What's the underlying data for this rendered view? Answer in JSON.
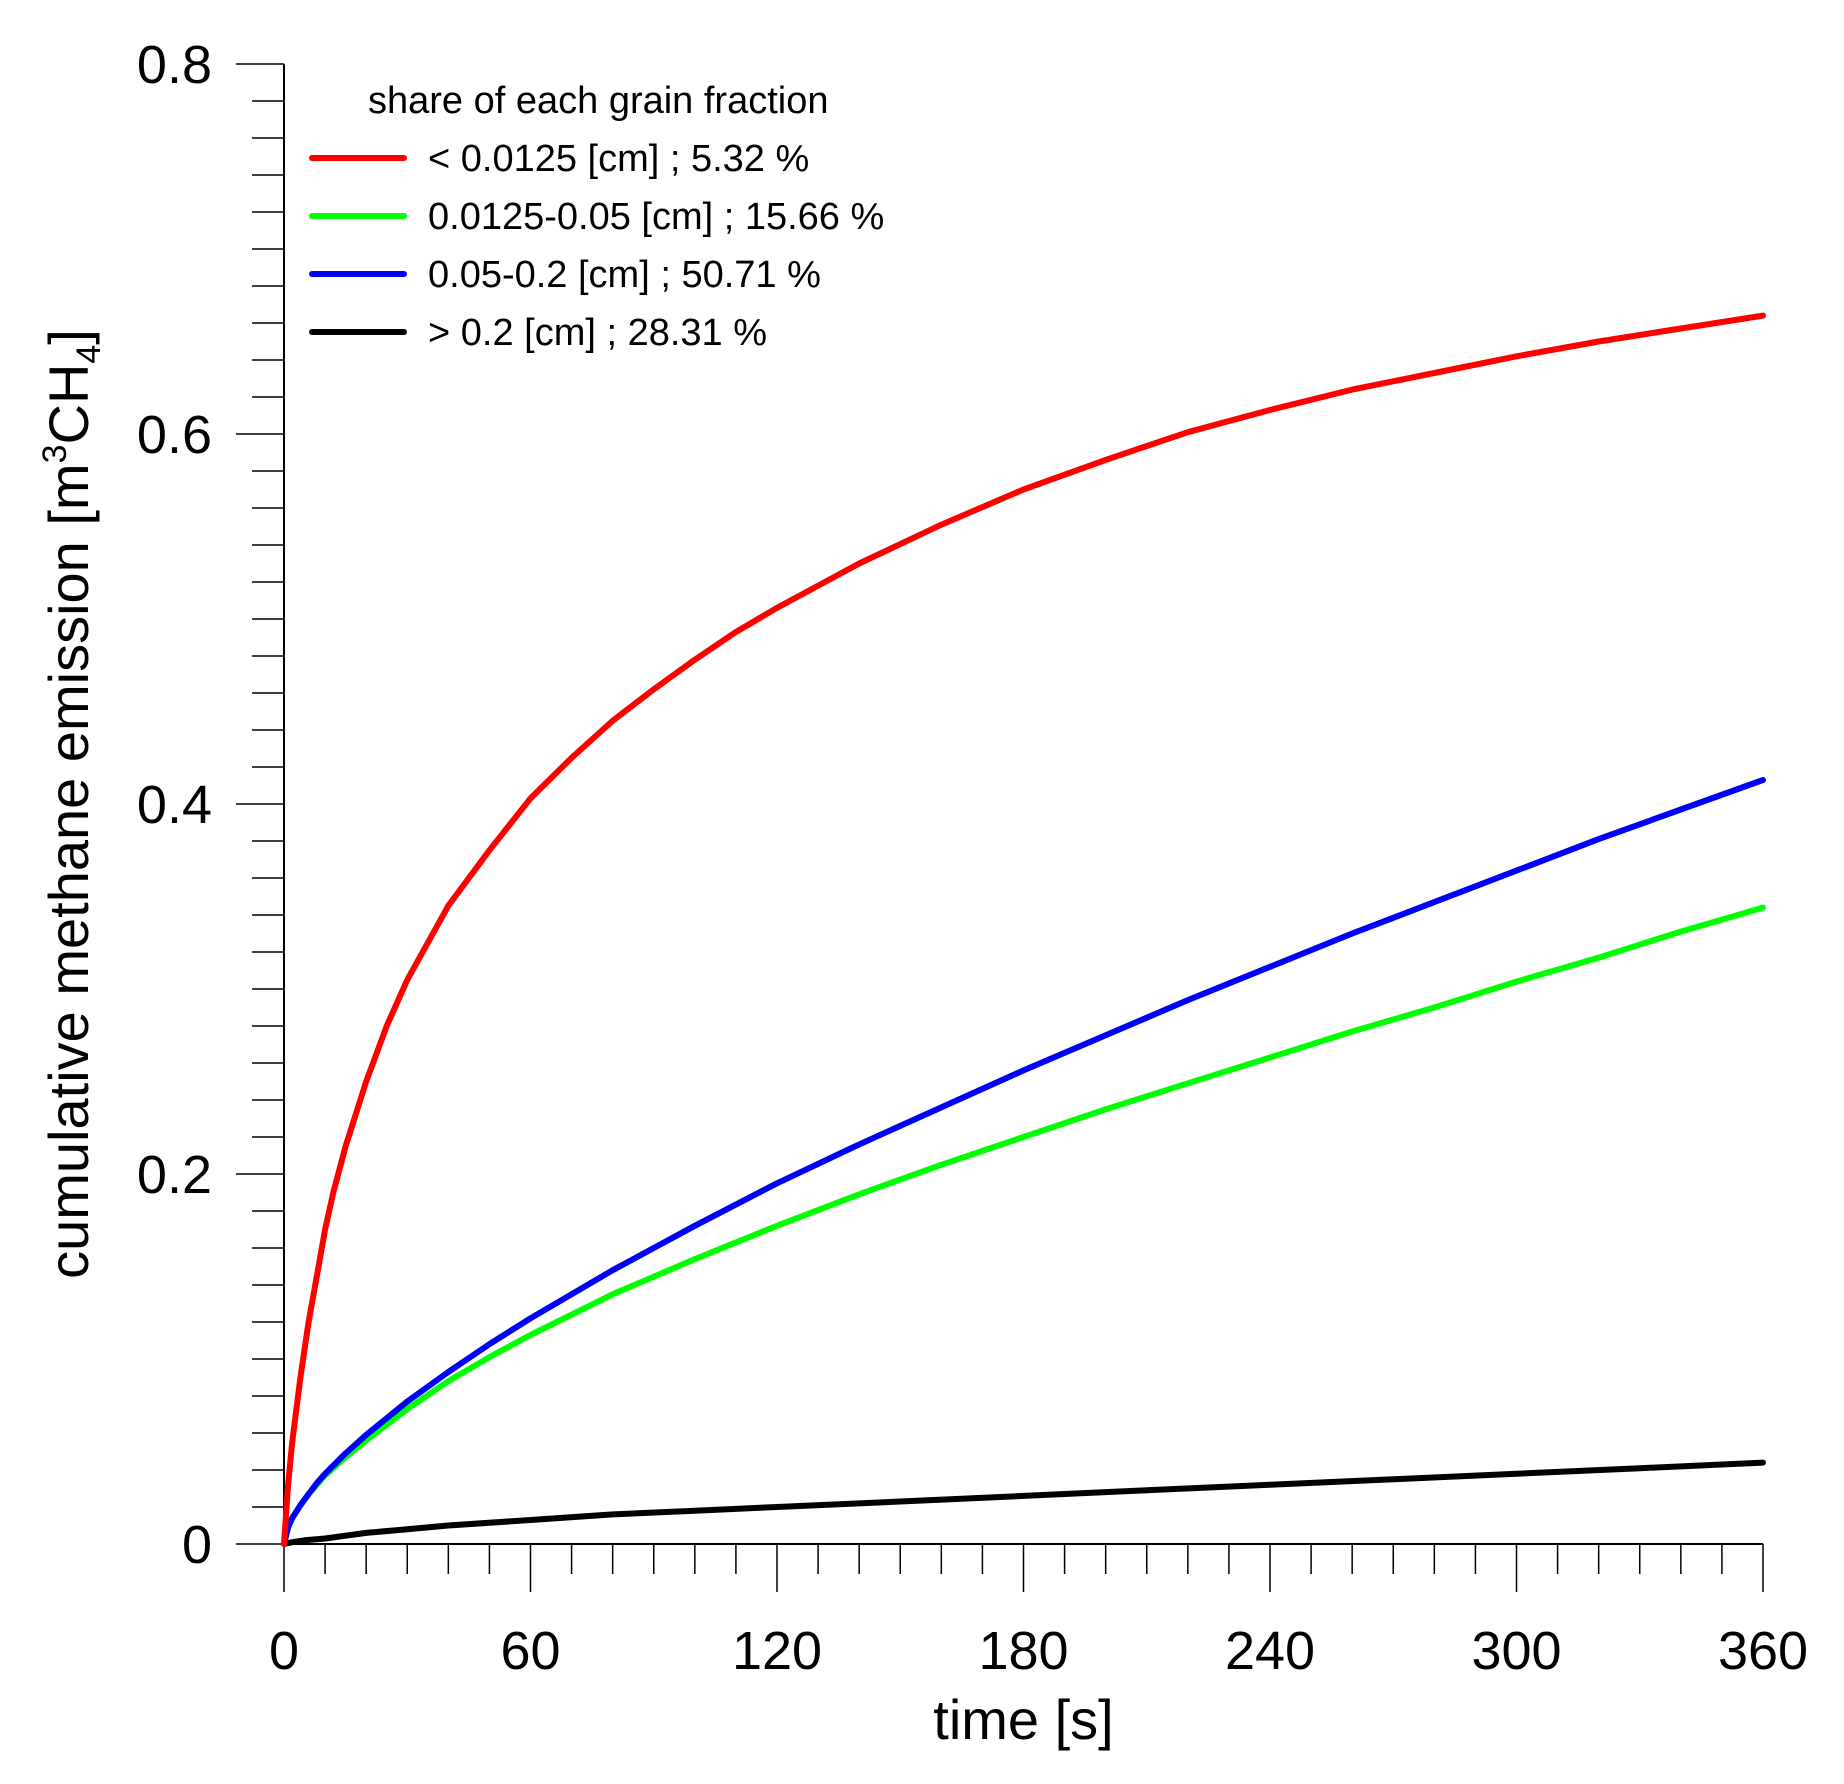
{
  "chart_data": {
    "type": "line",
    "title": "",
    "xlabel": "time [s]",
    "ylabel": {
      "main": "cumulative methane emission [m",
      "sup": "3",
      "mid": "CH",
      "sub": "4",
      "tail": "]"
    },
    "xlim": [
      0,
      360
    ],
    "ylim": [
      0,
      0.8
    ],
    "xticks": [
      {
        "value": 0,
        "label": "0"
      },
      {
        "value": 60,
        "label": "60"
      },
      {
        "value": 120,
        "label": "120"
      },
      {
        "value": 180,
        "label": "180"
      },
      {
        "value": 240,
        "label": "240"
      },
      {
        "value": 300,
        "label": "300"
      },
      {
        "value": 360,
        "label": "360"
      }
    ],
    "yticks": [
      {
        "value": 0,
        "label": "0"
      },
      {
        "value": 0.2,
        "label": "0.2"
      },
      {
        "value": 0.4,
        "label": "0.4"
      },
      {
        "value": 0.6,
        "label": "0.6"
      },
      {
        "value": 0.8,
        "label": "0.8"
      }
    ],
    "x_minor_step": 10,
    "y_minor_step": 0.02,
    "grid": false,
    "legend": {
      "title": "share of each grain fraction",
      "placement": "top-left"
    },
    "series": [
      {
        "name": "< 0.0125 [cm] ; 5.32 %",
        "color": "#ff0000",
        "x": [
          0,
          1,
          2,
          4,
          6,
          8,
          10,
          12,
          15,
          20,
          25,
          30,
          40,
          50,
          60,
          70,
          80,
          90,
          100,
          110,
          120,
          140,
          160,
          180,
          200,
          220,
          240,
          260,
          280,
          300,
          320,
          340,
          360
        ],
        "values": [
          0,
          0.032,
          0.055,
          0.09,
          0.12,
          0.145,
          0.17,
          0.19,
          0.215,
          0.25,
          0.28,
          0.305,
          0.345,
          0.375,
          0.403,
          0.425,
          0.445,
          0.462,
          0.478,
          0.493,
          0.506,
          0.53,
          0.551,
          0.57,
          0.586,
          0.601,
          0.613,
          0.624,
          0.633,
          0.642,
          0.65,
          0.657,
          0.664
        ]
      },
      {
        "name": "0.0125-0.05 [cm] ; 15.66 %",
        "color": "#00ff00",
        "x": [
          0,
          1,
          2,
          4,
          6,
          8,
          10,
          15,
          20,
          30,
          40,
          50,
          60,
          80,
          100,
          120,
          140,
          160,
          180,
          200,
          220,
          240,
          260,
          280,
          300,
          320,
          340,
          360
        ],
        "values": [
          0,
          0.009,
          0.014,
          0.021,
          0.027,
          0.032,
          0.037,
          0.047,
          0.056,
          0.073,
          0.088,
          0.101,
          0.113,
          0.135,
          0.154,
          0.172,
          0.189,
          0.205,
          0.22,
          0.235,
          0.249,
          0.263,
          0.277,
          0.29,
          0.304,
          0.317,
          0.331,
          0.344
        ]
      },
      {
        "name": "0.05-0.2 [cm] ; 50.71 %",
        "color": "#0000ff",
        "x": [
          0,
          1,
          2,
          4,
          6,
          8,
          10,
          15,
          20,
          30,
          40,
          50,
          60,
          80,
          100,
          120,
          140,
          160,
          180,
          200,
          220,
          240,
          260,
          280,
          300,
          320,
          340,
          360
        ],
        "values": [
          0,
          0.009,
          0.014,
          0.021,
          0.027,
          0.033,
          0.038,
          0.049,
          0.059,
          0.077,
          0.093,
          0.108,
          0.122,
          0.148,
          0.172,
          0.195,
          0.216,
          0.236,
          0.256,
          0.275,
          0.294,
          0.312,
          0.33,
          0.347,
          0.364,
          0.381,
          0.397,
          0.413
        ]
      },
      {
        "name": "> 0.2 [cm] ; 28.31 %",
        "color": "#000000",
        "x": [
          0,
          2,
          5,
          10,
          20,
          30,
          40,
          60,
          80,
          100,
          120,
          150,
          180,
          210,
          240,
          270,
          300,
          330,
          360
        ],
        "values": [
          0,
          0.001,
          0.002,
          0.003,
          0.006,
          0.008,
          0.01,
          0.013,
          0.016,
          0.018,
          0.02,
          0.023,
          0.026,
          0.029,
          0.032,
          0.035,
          0.038,
          0.041,
          0.044
        ]
      }
    ]
  }
}
